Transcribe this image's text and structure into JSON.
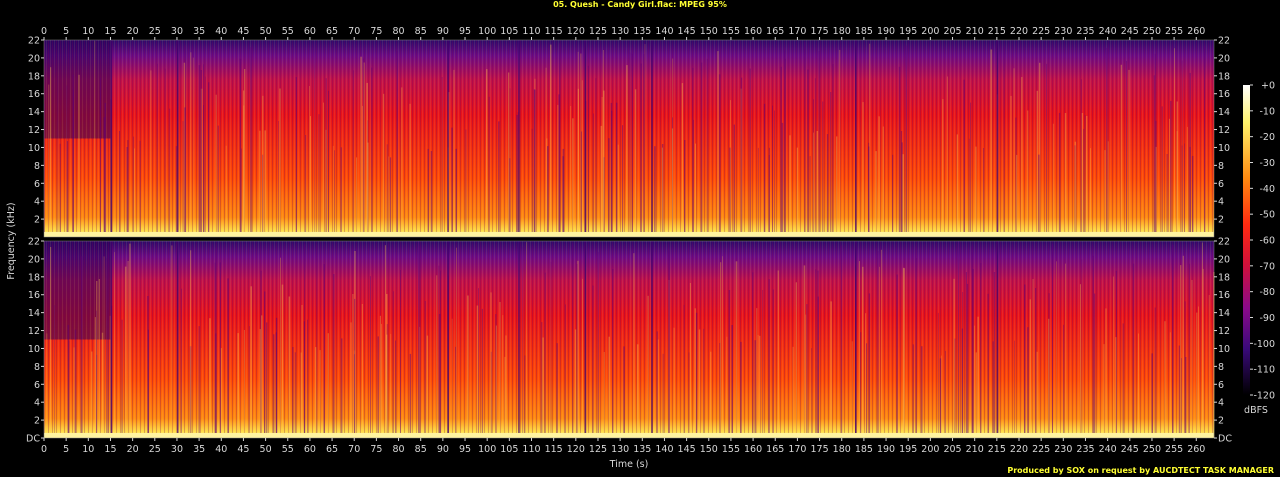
{
  "title": "05. Quesh - Candy Girl.flac: MPEG 95%",
  "credit": "Produced by SOX on request by AUCDTECT TASK MANAGER",
  "chart_data": {
    "type": "heatmap",
    "xlabel": "Time (s)",
    "ylabel": "Frequency (kHz)",
    "xlim": [
      0,
      264
    ],
    "ylim": [
      0,
      22
    ],
    "x_ticks": [
      "0",
      "5",
      "10",
      "15",
      "20",
      "25",
      "30",
      "35",
      "40",
      "45",
      "50",
      "55",
      "60",
      "65",
      "70",
      "75",
      "80",
      "85",
      "90",
      "95",
      "100",
      "105",
      "110",
      "115",
      "120",
      "125",
      "130",
      "135",
      "140",
      "145",
      "150",
      "155",
      "160",
      "165",
      "170",
      "175",
      "180",
      "185",
      "190",
      "195",
      "200",
      "205",
      "210",
      "215",
      "220",
      "225",
      "230",
      "235",
      "240",
      "245",
      "250",
      "255",
      "260"
    ],
    "y_ticks_top": [
      "2",
      "4",
      "6",
      "8",
      "10",
      "12",
      "14",
      "16",
      "18",
      "20",
      "22"
    ],
    "y_ticks_bottom": [
      "DC",
      "2",
      "4",
      "6",
      "8",
      "10",
      "12",
      "14",
      "16",
      "18",
      "20",
      "22"
    ],
    "channels": 2,
    "colorbar": {
      "label": "dBFS",
      "ticks": [
        "+0",
        "-10",
        "-20",
        "-30",
        "-40",
        "-50",
        "-60",
        "-70",
        "-80",
        "-90",
        "-100",
        "-110",
        "-120"
      ],
      "range": [
        -120,
        0
      ]
    },
    "colors": {
      "high": "#ffffff",
      "upper": "#ffee33",
      "mid": "#ff7700",
      "lower": "#ee1111",
      "low": "#660088",
      "floor": "#000000"
    },
    "segments_seconds": [
      {
        "start": 0,
        "end": 15,
        "level": "dark-purple upper band, bright low band"
      },
      {
        "start": 15,
        "end": 91,
        "level": "red/orange, full spectrum"
      },
      {
        "start": 91,
        "end": 107,
        "level": "dense red, quieter low band"
      },
      {
        "start": 107,
        "end": 137,
        "level": "red/orange"
      },
      {
        "start": 137,
        "end": 264,
        "level": "red/orange with bright transients"
      }
    ]
  }
}
